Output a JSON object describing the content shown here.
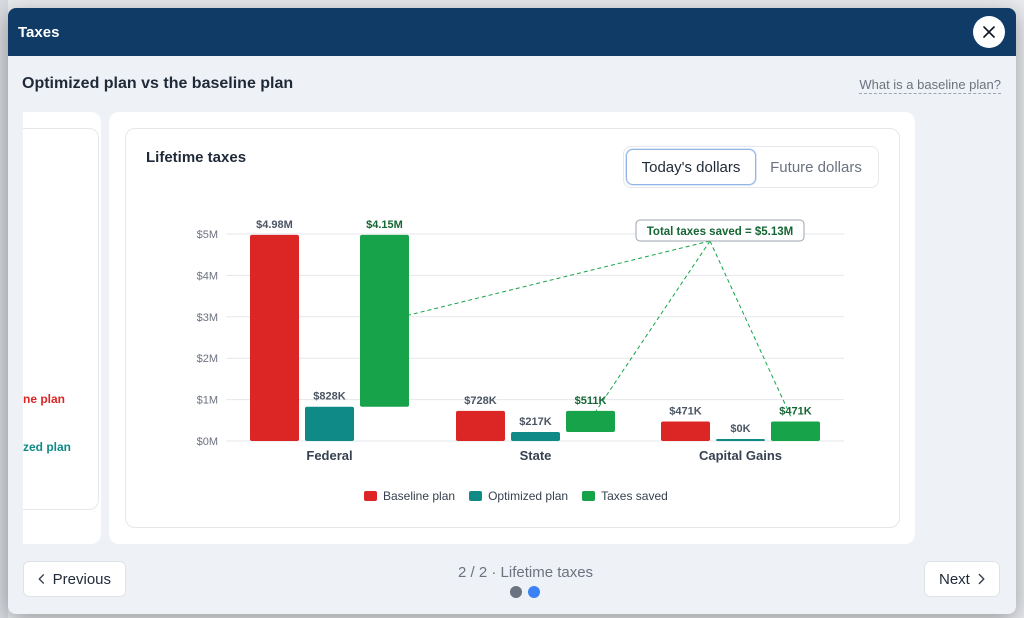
{
  "modal": {
    "title": "Taxes",
    "subtitle": "Optimized plan vs the baseline plan",
    "help_link": "What is a baseline plan?"
  },
  "prev_card": {
    "legend_baseline_fragment": "ne plan",
    "legend_optimized_fragment": "zed plan"
  },
  "chart_panel": {
    "title": "Lifetime taxes",
    "toggle": [
      "Today's dollars",
      "Future dollars"
    ],
    "active_toggle": "Today's dollars"
  },
  "chart_data": {
    "type": "bar",
    "title": "Lifetime taxes",
    "categories": [
      "Federal",
      "State",
      "Capital Gains"
    ],
    "ylim": [
      0,
      5
    ],
    "yticks": [
      "$0M",
      "$1M",
      "$2M",
      "$3M",
      "$4M",
      "$5M"
    ],
    "ytick_values": [
      0,
      1,
      2,
      3,
      4,
      5
    ],
    "grid": true,
    "legend_position": "bottom",
    "series": [
      {
        "name": "Baseline plan",
        "color": "#dc2626",
        "values": [
          4.98,
          0.728,
          0.471
        ],
        "labels": [
          "$4.98M",
          "$728K",
          "$471K"
        ]
      },
      {
        "name": "Optimized plan",
        "color": "#0f8a87",
        "values": [
          0.828,
          0.217,
          0.0
        ],
        "labels": [
          "$828K",
          "$217K",
          "$0K"
        ]
      },
      {
        "name": "Taxes saved",
        "color": "#16a34a",
        "values": [
          4.15,
          0.511,
          0.471
        ],
        "floating_from": [
          0.828,
          0.217,
          0.0
        ],
        "labels": [
          "$4.15M",
          "$511K",
          "$471K"
        ]
      }
    ],
    "annotation": "Total taxes saved = $5.13M"
  },
  "footer": {
    "prev_label": "Previous",
    "next_label": "Next",
    "progress": "2 / 2 · Lifetime taxes",
    "current_page": 2,
    "total_pages": 2
  },
  "colors": {
    "header": "#0f3b66",
    "baseline": "#dc2626",
    "optimized": "#0f8a87",
    "saved": "#16a34a",
    "dot_active": "#3b82f6",
    "dot_inactive": "#6b7280"
  }
}
